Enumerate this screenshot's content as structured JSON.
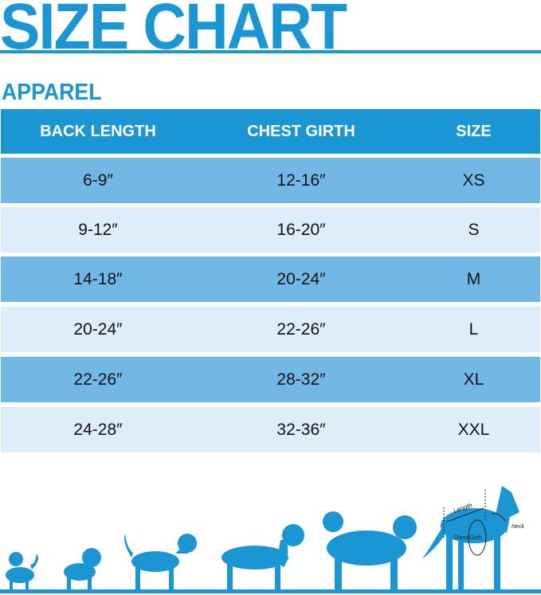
{
  "title": "SIZE CHART",
  "section": "APPAREL",
  "table": {
    "headers": [
      "BACK LENGTH",
      "CHEST GIRTH",
      "SIZE"
    ],
    "rows": [
      [
        "6-9″",
        "12-16″",
        "XS"
      ],
      [
        "9-12″",
        "16-20″",
        "S"
      ],
      [
        "14-18″",
        "20-24″",
        "M"
      ],
      [
        "20-24″",
        "22-26″",
        "L"
      ],
      [
        "22-26″",
        "28-32″",
        "XL"
      ],
      [
        "24-28″",
        "32-36″",
        "XXL"
      ]
    ]
  },
  "diagram": {
    "length": "Length",
    "chest": "Chest Girth",
    "neck": "Neck"
  },
  "colors": {
    "accent": "#1a96d4",
    "row_dark": "#72b8e6",
    "row_light": "#deedf9"
  }
}
